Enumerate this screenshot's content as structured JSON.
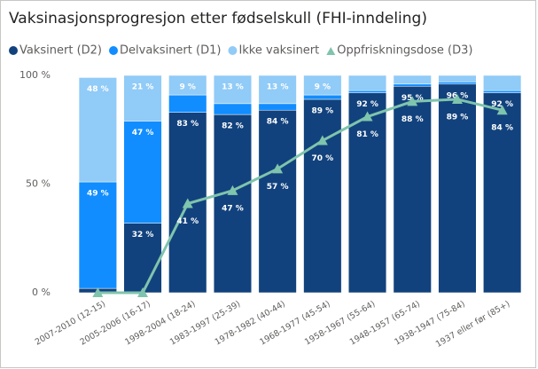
{
  "chart_data": {
    "type": "bar",
    "stacked": true,
    "title": "Vaksinasjonsprogresjon etter fødselskull (FHI-inndeling)",
    "categories": [
      "2007-2010 (12-15)",
      "2005-2006 (16-17)",
      "1998-2004 (18-24)",
      "1983-1997 (25-39)",
      "1978-1982 (40-44)",
      "1968-1977 (45-54)",
      "1958-1967 (55-64)",
      "1948-1957 (65-74)",
      "1938-1947 (75-84)",
      "1937 eller før (85+)"
    ],
    "series": [
      {
        "name": "Vaksinert (D2)",
        "color": "#12427d",
        "values": [
          2,
          32,
          83,
          82,
          84,
          89,
          92,
          95,
          96,
          92
        ],
        "value_labels": [
          null,
          "32 %",
          "83 %",
          "82 %",
          "84 %",
          "89 %",
          "92 %",
          "95 %",
          "96 %",
          "92 %"
        ]
      },
      {
        "name": "Delvaksinert (D1)",
        "color": "#118dff",
        "values": [
          49,
          47,
          8,
          5,
          3,
          2,
          1,
          1,
          1,
          1
        ],
        "value_labels": [
          "49 %",
          "47 %",
          null,
          null,
          null,
          null,
          null,
          null,
          null,
          null
        ]
      },
      {
        "name": "Ikke vaksinert",
        "color": "#91cbf7",
        "values": [
          48,
          21,
          9,
          13,
          13,
          9,
          7,
          4,
          3,
          7
        ],
        "value_labels": [
          "48 %",
          "21 %",
          "9 %",
          "13 %",
          "13 %",
          "9 %",
          null,
          null,
          null,
          null
        ]
      },
      {
        "name": "Oppfriskningsdose (D3)",
        "type": "line",
        "color": "#7fc4ad",
        "values": [
          0,
          0,
          41,
          47,
          57,
          70,
          81,
          88,
          89,
          84
        ],
        "value_labels": [
          null,
          null,
          "41 %",
          "47 %",
          "57 %",
          "70 %",
          "81 %",
          "88 %",
          "89 %",
          "84 %"
        ]
      }
    ],
    "ylim": [
      0,
      100
    ],
    "yticks": [
      {
        "value": 0,
        "label": "0 %"
      },
      {
        "value": 50,
        "label": "50 %"
      },
      {
        "value": 100,
        "label": "100 %"
      }
    ]
  }
}
